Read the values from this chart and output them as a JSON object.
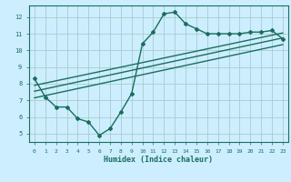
{
  "title": "",
  "xlabel": "Humidex (Indice chaleur)",
  "bg_color": "#cceeff",
  "grid_color": "#aacccc",
  "line_color": "#1a6e5e",
  "xlim": [
    -0.5,
    23.5
  ],
  "ylim": [
    4.5,
    12.7
  ],
  "xticks": [
    0,
    1,
    2,
    3,
    4,
    5,
    6,
    7,
    8,
    9,
    10,
    11,
    12,
    13,
    14,
    15,
    16,
    17,
    18,
    19,
    20,
    21,
    22,
    23
  ],
  "yticks": [
    5,
    6,
    7,
    8,
    9,
    10,
    11,
    12
  ],
  "curve_x": [
    0,
    1,
    2,
    3,
    4,
    5,
    6,
    7,
    8,
    9,
    10,
    11,
    12,
    13,
    14,
    15,
    16,
    17,
    18,
    19,
    20,
    21,
    22,
    23
  ],
  "curve_y": [
    8.3,
    7.2,
    6.6,
    6.6,
    5.9,
    5.7,
    4.9,
    5.3,
    6.3,
    7.4,
    10.4,
    11.1,
    12.2,
    12.3,
    11.6,
    11.3,
    11.0,
    11.0,
    11.0,
    11.0,
    11.1,
    11.1,
    11.2,
    10.7
  ],
  "line1_x": [
    0,
    23
  ],
  "line1_y": [
    7.9,
    11.05
  ],
  "line2_x": [
    0,
    23
  ],
  "line2_y": [
    7.55,
    10.75
  ],
  "line3_x": [
    0,
    23
  ],
  "line3_y": [
    7.15,
    10.35
  ]
}
